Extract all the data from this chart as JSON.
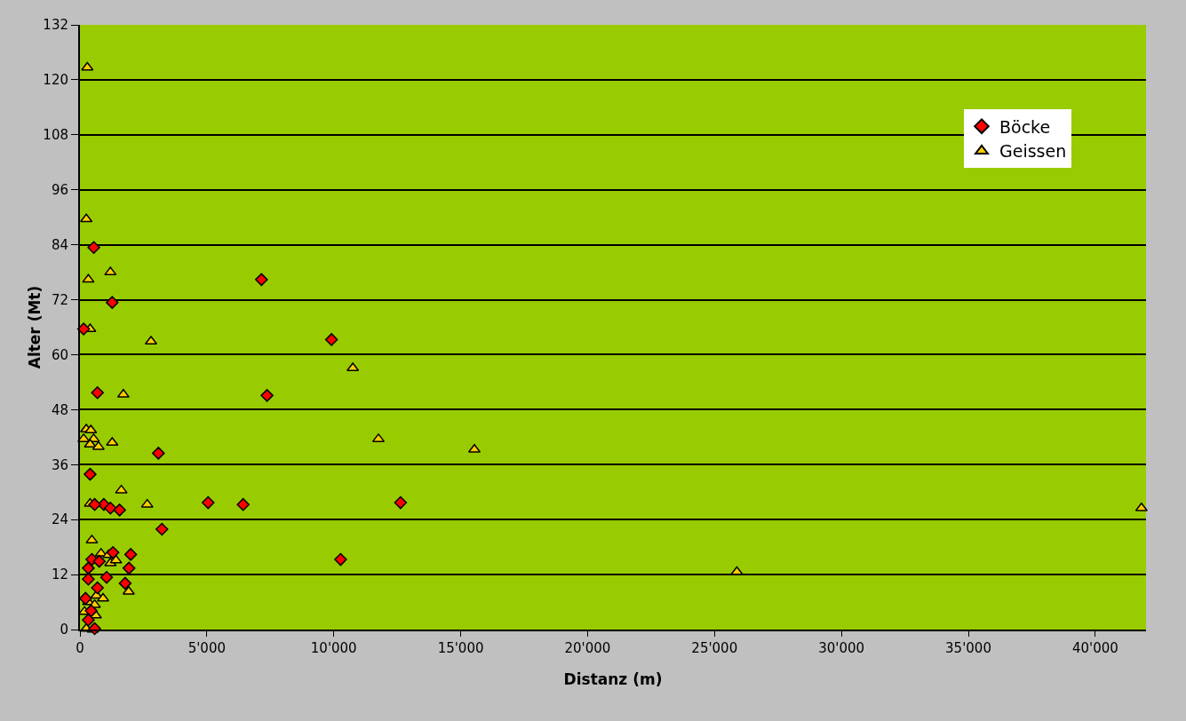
{
  "chart_data": {
    "type": "scatter",
    "xlabel": "Distanz (m)",
    "ylabel": "Alter (Mt)",
    "xlim": [
      0,
      42000
    ],
    "ylim": [
      0,
      132
    ],
    "xticks": [
      0,
      {
        "value": 5000,
        "label": "5'000"
      },
      {
        "value": 10000,
        "label": "10'000"
      },
      {
        "value": 15000,
        "label": "15'000"
      },
      {
        "value": 20000,
        "label": "20'000"
      },
      {
        "value": 25000,
        "label": "25'000"
      },
      {
        "value": 30000,
        "label": "30'000"
      },
      {
        "value": 35000,
        "label": "35'000"
      },
      {
        "value": 40000,
        "label": "40'000"
      }
    ],
    "yticks": [
      0,
      12,
      24,
      36,
      48,
      60,
      72,
      84,
      96,
      108,
      120,
      132
    ],
    "grid": "y",
    "legend": "top right",
    "series": [
      {
        "name": "Böcke",
        "color": "#ff0000",
        "marker": "diamond",
        "x": [
          145,
          545,
          1270,
          690,
          3090,
          400,
          940,
          1200,
          1560,
          580,
          3230,
          1300,
          2000,
          470,
          760,
          330,
          1930,
          330,
          1050,
          690,
          1780,
          220,
          440,
          330,
          580,
          7150,
          9910,
          7370,
          5050,
          6430,
          12630,
          10270
        ],
        "values": [
          65.6,
          83.4,
          71.4,
          51.7,
          38.5,
          33.9,
          27.3,
          26.5,
          26.1,
          27.3,
          21.9,
          16.8,
          16.4,
          15.3,
          14.9,
          13.4,
          13.4,
          11.0,
          11.4,
          9.1,
          10.1,
          6.8,
          4.1,
          2.1,
          0.2,
          76.4,
          63.3,
          51.1,
          27.7,
          27.3,
          27.7,
          15.3
        ]
      },
      {
        "name": "Geissen",
        "color": "#ffcc00",
        "marker": "triangle",
        "x": [
          290,
          250,
          330,
          1200,
          400,
          2800,
          1710,
          10750,
          11760,
          15540,
          2650,
          1630,
          1270,
          25880,
          41820,
          1920,
          250,
          430,
          145,
          540,
          400,
          730,
          400,
          470,
          830,
          1130,
          1200,
          1420,
          650,
          910,
          330,
          580,
          180,
          620,
          250,
          510
        ],
        "values": [
          122.7,
          89.6,
          76.4,
          78.0,
          65.6,
          62.9,
          51.3,
          57.1,
          41.6,
          39.3,
          27.3,
          30.4,
          40.8,
          12.6,
          26.5,
          8.3,
          43.7,
          43.5,
          41.6,
          41.6,
          40.4,
          39.9,
          27.5,
          19.5,
          16.6,
          16.3,
          14.5,
          15.1,
          7.4,
          6.8,
          6.0,
          5.4,
          3.9,
          3.1,
          0.2,
          0
        ]
      }
    ]
  }
}
